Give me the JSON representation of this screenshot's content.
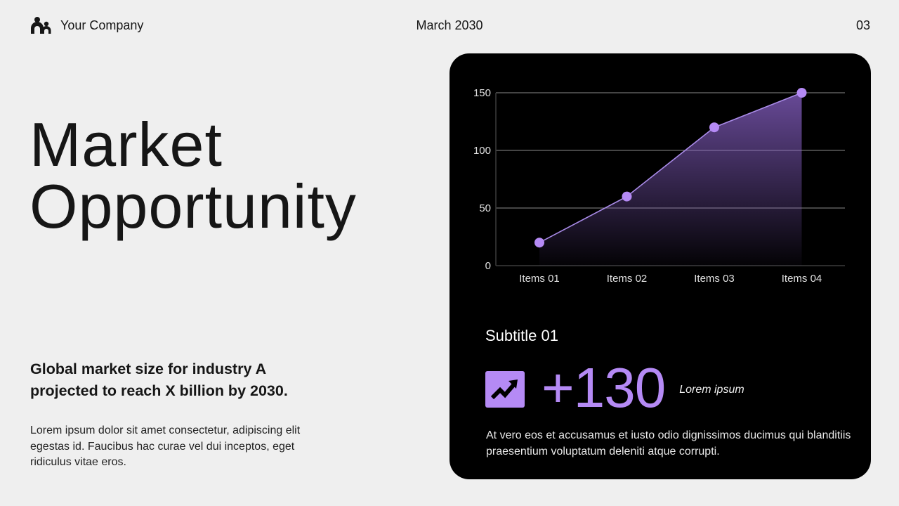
{
  "header": {
    "company": "Your Company",
    "company_icon": "people-icon",
    "date": "March 2030",
    "page_number": "03"
  },
  "title": {
    "line1": "Market",
    "line2": "Opportunity"
  },
  "headline": "Global market size for industry A projected to reach X billion by 2030.",
  "body": "Lorem ipsum dolor sit amet consectetur, adipiscing elit egestas id. Faucibus hac curae vel dui inceptos, eget ridiculus vitae eros.",
  "card": {
    "subtitle": "Subtitle 01",
    "stat_icon": "trending-up-icon",
    "stat_value": "+130",
    "stat_label": "Lorem ipsum",
    "text": "At vero eos et accusamus et iusto odio dignissimos ducimus qui blanditiis praesentium voluptatum deleniti atque corrupti."
  },
  "colors": {
    "background": "#efefef",
    "card": "#000000",
    "accent": "#b58af5",
    "text": "#161616"
  },
  "chart_data": {
    "type": "area",
    "title": "",
    "xlabel": "",
    "ylabel": "",
    "categories": [
      "Items 01",
      "Items 02",
      "Items 03",
      "Items 04"
    ],
    "values": [
      20,
      60,
      120,
      150
    ],
    "yticks": [
      "0",
      "50",
      "100",
      "150"
    ],
    "ylim": [
      0,
      150
    ],
    "grid": true,
    "legend": "none"
  }
}
